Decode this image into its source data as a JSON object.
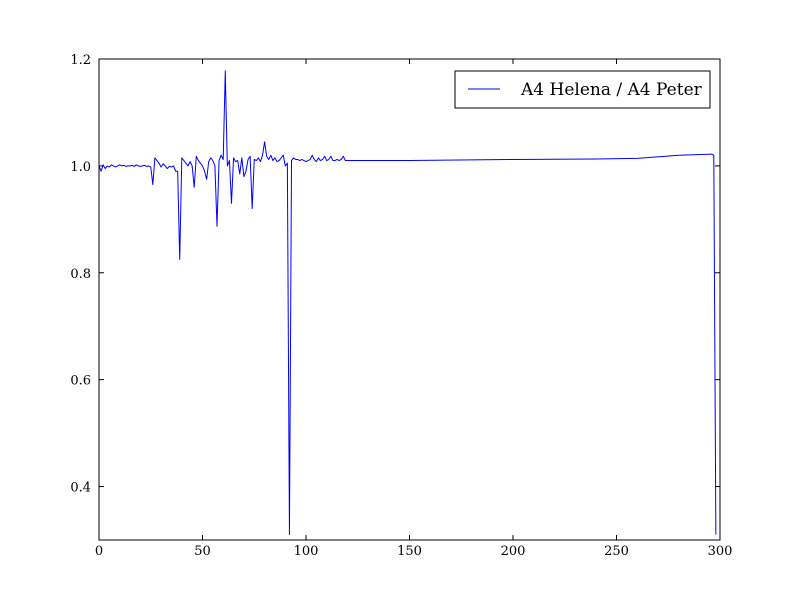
{
  "chart_data": {
    "type": "line",
    "title": "",
    "xlabel": "",
    "ylabel": "",
    "xlim": [
      0,
      300
    ],
    "ylim": [
      0.3,
      1.2
    ],
    "x_ticks": [
      0,
      50,
      100,
      150,
      200,
      250,
      300
    ],
    "y_ticks": [
      0.4,
      0.6,
      0.8,
      1.0,
      1.2
    ],
    "x_tick_labels": [
      "0",
      "50",
      "100",
      "150",
      "200",
      "250",
      "300"
    ],
    "y_tick_labels": [
      "0.4",
      "0.6",
      "0.8",
      "1.0",
      "1.2"
    ],
    "grid": false,
    "legend_position": "top-right",
    "series": [
      {
        "name": "A4 Helena / A4 Peter",
        "color": "#0000ff",
        "x": [
          0,
          1,
          2,
          3,
          4,
          5,
          6,
          7,
          8,
          9,
          10,
          11,
          12,
          13,
          14,
          15,
          16,
          17,
          18,
          19,
          20,
          21,
          22,
          23,
          24,
          25,
          26,
          27,
          28,
          29,
          30,
          31,
          32,
          33,
          34,
          35,
          36,
          37,
          38,
          39,
          40,
          41,
          42,
          43,
          44,
          45,
          46,
          47,
          48,
          49,
          50,
          51,
          52,
          53,
          54,
          55,
          56,
          57,
          58,
          59,
          60,
          61,
          62,
          63,
          64,
          65,
          66,
          67,
          68,
          69,
          70,
          71,
          72,
          73,
          74,
          75,
          76,
          77,
          78,
          79,
          80,
          81,
          82,
          83,
          84,
          85,
          86,
          87,
          88,
          89,
          90,
          91,
          92,
          93,
          94,
          95,
          96,
          97,
          98,
          99,
          100,
          101,
          102,
          103,
          104,
          105,
          106,
          107,
          108,
          109,
          110,
          111,
          112,
          113,
          114,
          115,
          116,
          117,
          118,
          119,
          120,
          150,
          200,
          240,
          260,
          280,
          296,
          297,
          298
        ],
        "y": [
          1.0,
          0.99,
          1.002,
          0.995,
          1.0,
          0.998,
          1.002,
          1.0,
          0.998,
          1.0,
          1.002,
          1.0,
          1.001,
          0.999,
          1.0,
          1.0,
          1.001,
          0.999,
          1.002,
          1.0,
          0.999,
          1.0,
          1.001,
          0.999,
          1.0,
          0.998,
          0.965,
          1.015,
          1.01,
          1.005,
          0.998,
          1.004,
          1.0,
          0.995,
          0.999,
          0.998,
          1.0,
          0.99,
          0.99,
          0.825,
          1.015,
          1.01,
          1.005,
          1.0,
          1.008,
          1.0,
          0.96,
          1.018,
          1.01,
          1.005,
          1.0,
          0.99,
          0.975,
          1.008,
          1.015,
          1.01,
          1.0,
          0.887,
          1.01,
          1.02,
          1.012,
          1.178,
          1.0,
          1.01,
          0.93,
          1.015,
          1.008,
          1.01,
          0.985,
          1.015,
          0.98,
          0.99,
          1.012,
          1.018,
          0.92,
          1.012,
          1.01,
          1.015,
          1.008,
          1.02,
          1.045,
          1.018,
          1.012,
          1.02,
          1.01,
          1.015,
          1.008,
          1.01,
          1.015,
          1.02,
          1.0,
          1.005,
          0.31,
          1.01,
          1.015,
          1.012,
          1.012,
          1.01,
          1.012,
          1.01,
          1.008,
          1.01,
          1.012,
          1.02,
          1.012,
          1.008,
          1.015,
          1.01,
          1.012,
          1.018,
          1.01,
          1.012,
          1.018,
          1.01,
          1.01,
          1.012,
          1.01,
          1.012,
          1.018,
          1.01,
          1.01,
          1.01,
          1.012,
          1.013,
          1.014,
          1.02,
          1.022,
          1.02,
          0.31
        ]
      }
    ]
  }
}
